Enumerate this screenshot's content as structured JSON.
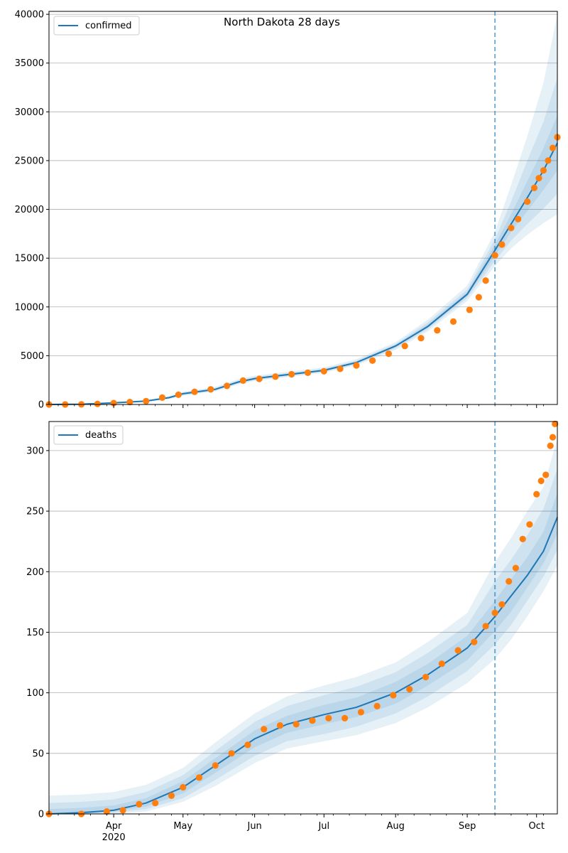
{
  "figure": {
    "title": "North Dakota 28 days"
  },
  "colors": {
    "fit_line": "#1f77b4",
    "observed_points": "#ff7f0e",
    "band": "#1f77b4",
    "forecast_marker": "#1f77b4",
    "grid": "#b0b0b0"
  },
  "chart_data": [
    {
      "type": "line",
      "name": "confirmed-panel",
      "legend": [
        "confirmed"
      ],
      "legend_placement": "top-left",
      "grid": "horizontal",
      "x_axis": {
        "type": "date",
        "range": [
          "2020-03-04",
          "2020-10-10"
        ],
        "major_ticks": [
          {
            "date": "2020-04-01",
            "label": "Apr",
            "sublabel": "2020"
          },
          {
            "date": "2020-05-01",
            "label": "May"
          },
          {
            "date": "2020-06-01",
            "label": "Jun"
          },
          {
            "date": "2020-07-01",
            "label": "Jul"
          },
          {
            "date": "2020-08-01",
            "label": "Aug"
          },
          {
            "date": "2020-09-01",
            "label": "Sep"
          },
          {
            "date": "2020-10-01",
            "label": "Oct"
          }
        ],
        "minor_tick_dates": [
          "2020-03-08",
          "2020-03-15",
          "2020-03-22",
          "2020-03-29",
          "2020-04-05",
          "2020-04-12",
          "2020-04-19",
          "2020-04-26",
          "2020-05-03",
          "2020-05-10",
          "2020-05-17",
          "2020-05-24",
          "2020-05-31",
          "2020-06-07",
          "2020-06-14",
          "2020-06-21",
          "2020-06-28",
          "2020-07-05",
          "2020-07-12",
          "2020-07-19",
          "2020-07-26",
          "2020-08-02",
          "2020-08-09",
          "2020-08-16",
          "2020-08-23",
          "2020-08-30",
          "2020-09-06",
          "2020-09-13",
          "2020-09-20",
          "2020-09-27",
          "2020-10-04"
        ]
      },
      "y_axis": {
        "range": [
          0,
          40300
        ],
        "ticks": [
          0,
          5000,
          10000,
          15000,
          20000,
          25000,
          30000,
          35000,
          40000
        ],
        "tick_labels": [
          "0",
          "5000",
          "10000",
          "15000",
          "20000",
          "25000",
          "30000",
          "35000",
          "40000"
        ]
      },
      "forecast_start": "2020-09-13",
      "fit": {
        "name": "confirmed",
        "x": [
          "2020-03-04",
          "2020-03-18",
          "2020-04-01",
          "2020-04-15",
          "2020-04-25",
          "2020-05-01",
          "2020-05-15",
          "2020-05-25",
          "2020-06-01",
          "2020-06-15",
          "2020-07-01",
          "2020-07-15",
          "2020-08-01",
          "2020-08-15",
          "2020-09-01",
          "2020-09-13",
          "2020-09-20",
          "2020-09-27",
          "2020-10-04",
          "2020-10-10"
        ],
        "y": [
          0,
          30,
          170,
          350,
          700,
          1100,
          1550,
          2300,
          2650,
          3050,
          3500,
          4300,
          6000,
          8000,
          11300,
          15800,
          18500,
          21200,
          24000,
          26800
        ],
        "bands": [
          {
            "lower": [
              0,
              10,
              100,
              260,
              560,
              900,
              1350,
              2050,
              2400,
              2800,
              3250,
              4000,
              5600,
              7500,
              10600,
              14200,
              16000,
              17400,
              18600,
              19500
            ],
            "upper": [
              0,
              60,
              250,
              450,
              850,
              1300,
              1800,
              2600,
              2950,
              3350,
              3800,
              4650,
              6400,
              8700,
              12200,
              17700,
              22500,
              27500,
              33000,
              40000
            ]
          },
          {
            "lower": [
              0,
              15,
              120,
              290,
              600,
              960,
              1420,
              2150,
              2490,
              2890,
              3340,
              4120,
              5760,
              7720,
              10900,
              14700,
              16800,
              18500,
              20100,
              21600
            ],
            "upper": [
              0,
              50,
              220,
              420,
              800,
              1240,
              1700,
              2480,
              2830,
              3230,
              3680,
              4500,
              6220,
              8420,
              11800,
              16950,
              20800,
              25000,
              29000,
              33500
            ]
          },
          {
            "lower": [
              0,
              20,
              140,
              320,
              650,
              1030,
              1490,
              2220,
              2560,
              2960,
              3410,
              4220,
              5880,
              7870,
              11100,
              15200,
              17700,
              19800,
              22000,
              24000
            ],
            "upper": [
              0,
              40,
              195,
              385,
              755,
              1170,
              1620,
              2390,
              2740,
              3140,
              3590,
              4390,
              6110,
              8210,
              11550,
              16400,
              19500,
              22900,
              26300,
              29600
            ]
          }
        ]
      },
      "observed": {
        "name": "observed confirmed",
        "x": [
          "2020-03-04",
          "2020-03-11",
          "2020-03-18",
          "2020-03-25",
          "2020-04-01",
          "2020-04-08",
          "2020-04-15",
          "2020-04-22",
          "2020-04-29",
          "2020-05-06",
          "2020-05-13",
          "2020-05-20",
          "2020-05-27",
          "2020-06-03",
          "2020-06-10",
          "2020-06-17",
          "2020-06-24",
          "2020-07-01",
          "2020-07-08",
          "2020-07-15",
          "2020-07-22",
          "2020-07-29",
          "2020-08-05",
          "2020-08-12",
          "2020-08-19",
          "2020-08-26",
          "2020-09-02",
          "2020-09-06",
          "2020-09-09",
          "2020-09-13",
          "2020-09-16",
          "2020-09-20",
          "2020-09-23",
          "2020-09-27",
          "2020-09-30",
          "2020-10-02",
          "2020-10-04",
          "2020-10-06",
          "2020-10-08",
          "2020-10-10"
        ],
        "y": [
          0,
          0,
          10,
          60,
          140,
          250,
          340,
          700,
          1000,
          1300,
          1550,
          1900,
          2450,
          2620,
          2850,
          3100,
          3250,
          3400,
          3650,
          4000,
          4500,
          5200,
          6000,
          6800,
          7600,
          8500,
          9700,
          11000,
          12700,
          15300,
          16400,
          18100,
          19000,
          20800,
          22200,
          23200,
          24000,
          25000,
          26300,
          27400
        ]
      }
    },
    {
      "type": "line",
      "name": "deaths-panel",
      "legend": [
        "deaths"
      ],
      "legend_placement": "top-left",
      "grid": "horizontal",
      "x_axis": {
        "type": "date",
        "range": [
          "2020-03-04",
          "2020-10-10"
        ],
        "major_ticks": [
          {
            "date": "2020-04-01",
            "label": "Apr",
            "sublabel": "2020"
          },
          {
            "date": "2020-05-01",
            "label": "May"
          },
          {
            "date": "2020-06-01",
            "label": "Jun"
          },
          {
            "date": "2020-07-01",
            "label": "Jul"
          },
          {
            "date": "2020-08-01",
            "label": "Aug"
          },
          {
            "date": "2020-09-01",
            "label": "Sep"
          },
          {
            "date": "2020-10-01",
            "label": "Oct"
          }
        ],
        "minor_tick_dates": [
          "2020-03-08",
          "2020-03-15",
          "2020-03-22",
          "2020-03-29",
          "2020-04-05",
          "2020-04-12",
          "2020-04-19",
          "2020-04-26",
          "2020-05-03",
          "2020-05-10",
          "2020-05-17",
          "2020-05-24",
          "2020-05-31",
          "2020-06-07",
          "2020-06-14",
          "2020-06-21",
          "2020-06-28",
          "2020-07-05",
          "2020-07-12",
          "2020-07-19",
          "2020-07-26",
          "2020-08-02",
          "2020-08-09",
          "2020-08-16",
          "2020-08-23",
          "2020-08-30",
          "2020-09-06",
          "2020-09-13",
          "2020-09-20",
          "2020-09-27",
          "2020-10-04"
        ]
      },
      "y_axis": {
        "range": [
          0,
          324
        ],
        "ticks": [
          0,
          50,
          100,
          150,
          200,
          250,
          300
        ],
        "tick_labels": [
          "0",
          "50",
          "100",
          "150",
          "200",
          "250",
          "300"
        ]
      },
      "forecast_start": "2020-09-13",
      "fit": {
        "name": "deaths",
        "x": [
          "2020-03-04",
          "2020-03-18",
          "2020-04-01",
          "2020-04-15",
          "2020-05-01",
          "2020-05-15",
          "2020-06-01",
          "2020-06-15",
          "2020-07-01",
          "2020-07-15",
          "2020-08-01",
          "2020-08-15",
          "2020-09-01",
          "2020-09-13",
          "2020-09-20",
          "2020-09-27",
          "2020-10-04",
          "2020-10-10"
        ],
        "y": [
          0,
          1,
          3,
          9,
          22,
          40,
          62,
          74,
          82,
          88,
          100,
          115,
          137,
          163,
          180,
          197,
          217,
          245
        ],
        "bands": [
          {
            "lower": [
              0,
              0,
              0,
              2,
              10,
              23,
              42,
              54,
              60,
              65,
              75,
              88,
              108,
              128,
              144,
              163,
              184,
              205
            ],
            "upper": [
              15,
              16,
              18,
              24,
              38,
              59,
              83,
              97,
              106,
              113,
              125,
              142,
              166,
              208,
              228,
              250,
              270,
              310
            ]
          },
          {
            "lower": [
              0,
              0,
              1,
              4,
              13,
              28,
              48,
              60,
              66,
              72,
              83,
              97,
              118,
              140,
              156,
              176,
              196,
              218
            ],
            "upper": [
              9,
              10,
              12,
              18,
              32,
              52,
              76,
              89,
              98,
              105,
              117,
              133,
              156,
              192,
              210,
              230,
              252,
              285
            ]
          },
          {
            "lower": [
              0,
              0,
              2,
              6,
              17,
              34,
              55,
              67,
              74,
              80,
              91,
              106,
              127,
              151,
              167,
              187,
              207,
              231
            ],
            "upper": [
              4,
              5,
              7,
              13,
              27,
              46,
              69,
              81,
              90,
              96,
              109,
              124,
              147,
              176,
              194,
              212,
              233,
              265
            ]
          }
        ]
      },
      "observed": {
        "name": "observed deaths",
        "x": [
          "2020-03-04",
          "2020-03-18",
          "2020-03-29",
          "2020-04-05",
          "2020-04-12",
          "2020-04-19",
          "2020-04-26",
          "2020-05-01",
          "2020-05-08",
          "2020-05-15",
          "2020-05-22",
          "2020-05-29",
          "2020-06-05",
          "2020-06-12",
          "2020-06-19",
          "2020-06-26",
          "2020-07-03",
          "2020-07-10",
          "2020-07-17",
          "2020-07-24",
          "2020-07-31",
          "2020-08-07",
          "2020-08-14",
          "2020-08-21",
          "2020-08-28",
          "2020-09-04",
          "2020-09-09",
          "2020-09-13",
          "2020-09-16",
          "2020-09-19",
          "2020-09-22",
          "2020-09-25",
          "2020-09-28",
          "2020-10-01",
          "2020-10-03",
          "2020-10-05",
          "2020-10-07",
          "2020-10-08",
          "2020-10-09"
        ],
        "y": [
          0,
          0,
          2,
          3,
          8,
          9,
          15,
          22,
          30,
          40,
          50,
          57,
          70,
          73,
          74,
          77,
          79,
          79,
          84,
          89,
          98,
          103,
          113,
          124,
          135,
          142,
          155,
          166,
          173,
          192,
          203,
          227,
          239,
          264,
          275,
          280,
          304,
          311,
          322
        ]
      }
    }
  ]
}
